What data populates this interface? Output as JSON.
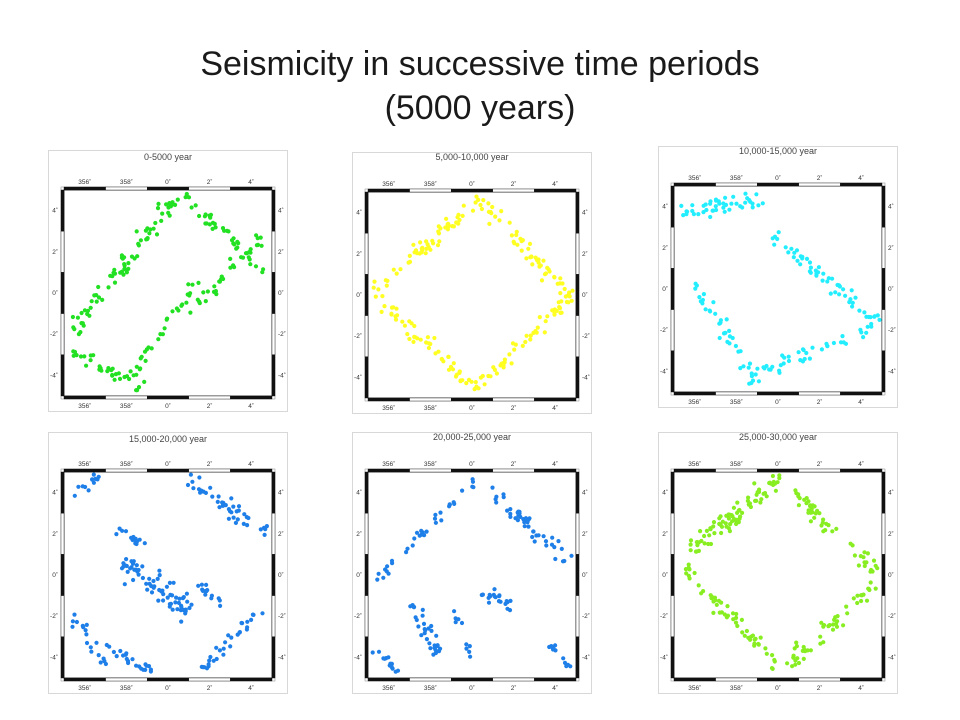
{
  "slide": {
    "title_line1": "Seismicity in successive time periods",
    "title_line2": "(5000 years)"
  },
  "axes": {
    "x_ticks": [
      "356˚",
      "358˚",
      "0˚",
      "2˚",
      "4˚"
    ],
    "y_ticks": [
      "4˚",
      "2˚",
      "0˚",
      "-2˚",
      "-4˚"
    ]
  },
  "chart_data": [
    {
      "type": "scatter",
      "title": "0-5000 year",
      "color": "#22e022",
      "xlim": [
        -5,
        5
      ],
      "ylim": [
        -5,
        5
      ],
      "clusters": [
        {
          "from": [
            -4.6,
            -1.8
          ],
          "to": [
            0.4,
            4.6
          ],
          "count": 75,
          "width": 1.1
        },
        {
          "from": [
            -4.6,
            -2.8
          ],
          "to": [
            -1.2,
            -4.6
          ],
          "count": 30,
          "width": 0.8
        },
        {
          "from": [
            0.8,
            4.7
          ],
          "to": [
            4.7,
            1.0
          ],
          "count": 40,
          "width": 0.9
        },
        {
          "from": [
            -2.0,
            -4.3
          ],
          "to": [
            1.6,
            0.8
          ],
          "count": 32,
          "width": 0.7
        },
        {
          "from": [
            1.0,
            -1.0
          ],
          "to": [
            4.6,
            2.8
          ],
          "count": 30,
          "width": 0.7
        }
      ]
    },
    {
      "type": "scatter",
      "title": "5,000-10,000 year",
      "color": "#ffff22",
      "xlim": [
        -5,
        5
      ],
      "ylim": [
        -5,
        5
      ],
      "clusters": [
        {
          "from": [
            -4.7,
            0.2
          ],
          "to": [
            0.3,
            4.6
          ],
          "count": 55,
          "width": 0.9
        },
        {
          "from": [
            0.3,
            4.6
          ],
          "to": [
            4.7,
            0.0
          ],
          "count": 55,
          "width": 0.9
        },
        {
          "from": [
            -4.7,
            0.0
          ],
          "to": [
            0.3,
            -4.6
          ],
          "count": 55,
          "width": 0.9
        },
        {
          "from": [
            0.3,
            -4.6
          ],
          "to": [
            4.7,
            0.0
          ],
          "count": 50,
          "width": 0.9
        }
      ]
    },
    {
      "type": "scatter",
      "title": "10,000-15,000 year",
      "color": "#22eeff",
      "xlim": [
        -5,
        5
      ],
      "ylim": [
        -5,
        5
      ],
      "clusters": [
        {
          "from": [
            -4.6,
            3.8
          ],
          "to": [
            -0.6,
            4.2
          ],
          "count": 45,
          "width": 1.3
        },
        {
          "from": [
            -4.3,
            0.8
          ],
          "to": [
            -1.2,
            -4.2
          ],
          "count": 35,
          "width": 0.9
        },
        {
          "from": [
            -0.2,
            2.6
          ],
          "to": [
            4.7,
            -1.6
          ],
          "count": 55,
          "width": 0.9
        },
        {
          "from": [
            -1.4,
            -4.4
          ],
          "to": [
            4.6,
            -1.8
          ],
          "count": 45,
          "width": 1.1
        }
      ]
    },
    {
      "type": "scatter",
      "title": "15,000-20,000 year",
      "color": "#1f7fe8",
      "xlim": [
        -5,
        5
      ],
      "ylim": [
        -5,
        5
      ],
      "clusters": [
        {
          "from": [
            -4.6,
            3.8
          ],
          "to": [
            -3.2,
            4.8
          ],
          "count": 12,
          "width": 0.6
        },
        {
          "from": [
            0.9,
            4.7
          ],
          "to": [
            4.7,
            2.0
          ],
          "count": 42,
          "width": 1.0
        },
        {
          "from": [
            -2.2,
            0.6
          ],
          "to": [
            1.0,
            -1.8
          ],
          "count": 70,
          "width": 1.6
        },
        {
          "from": [
            -2.4,
            2.2
          ],
          "to": [
            -1.0,
            1.4
          ],
          "count": 14,
          "width": 0.6
        },
        {
          "from": [
            1.4,
            -0.4
          ],
          "to": [
            2.6,
            -1.6
          ],
          "count": 14,
          "width": 0.6
        },
        {
          "from": [
            -4.7,
            -1.8
          ],
          "to": [
            -3.0,
            -4.4
          ],
          "count": 18,
          "width": 0.6
        },
        {
          "from": [
            -3.0,
            -3.4
          ],
          "to": [
            -0.8,
            -4.7
          ],
          "count": 22,
          "width": 0.6
        },
        {
          "from": [
            1.6,
            -4.6
          ],
          "to": [
            4.6,
            -1.6
          ],
          "count": 30,
          "width": 0.7
        }
      ]
    },
    {
      "type": "scatter",
      "title": "20,000-25,000 year",
      "color": "#1f7fe8",
      "xlim": [
        -5,
        5
      ],
      "ylim": [
        -5,
        5
      ],
      "clusters": [
        {
          "from": [
            -4.6,
            -0.2
          ],
          "to": [
            0.2,
            4.7
          ],
          "count": 35,
          "width": 0.7
        },
        {
          "from": [
            1.0,
            4.2
          ],
          "to": [
            4.7,
            0.6
          ],
          "count": 45,
          "width": 1.1
        },
        {
          "from": [
            -3.0,
            -1.2
          ],
          "to": [
            -1.6,
            -3.8
          ],
          "count": 30,
          "width": 0.8
        },
        {
          "from": [
            -0.8,
            -1.8
          ],
          "to": [
            0.0,
            -4.0
          ],
          "count": 10,
          "width": 0.4
        },
        {
          "from": [
            0.4,
            -0.8
          ],
          "to": [
            2.0,
            -1.4
          ],
          "count": 20,
          "width": 0.7
        },
        {
          "from": [
            -4.7,
            -3.6
          ],
          "to": [
            -3.6,
            -4.7
          ],
          "count": 14,
          "width": 0.5
        },
        {
          "from": [
            3.8,
            -3.4
          ],
          "to": [
            4.6,
            -4.6
          ],
          "count": 12,
          "width": 0.5
        }
      ]
    },
    {
      "type": "scatter",
      "title": "25,000-30,000 year",
      "color": "#88ee22",
      "xlim": [
        -5,
        5
      ],
      "ylim": [
        -5,
        5
      ],
      "clusters": [
        {
          "from": [
            -4.6,
            0.8
          ],
          "to": [
            0.2,
            4.8
          ],
          "count": 85,
          "width": 1.4
        },
        {
          "from": [
            0.4,
            4.4
          ],
          "to": [
            4.6,
            0.2
          ],
          "count": 50,
          "width": 1.0
        },
        {
          "from": [
            -4.6,
            0.4
          ],
          "to": [
            0.0,
            -4.4
          ],
          "count": 55,
          "width": 1.0
        },
        {
          "from": [
            0.4,
            -4.6
          ],
          "to": [
            4.6,
            -0.4
          ],
          "count": 50,
          "width": 1.0
        }
      ]
    }
  ]
}
